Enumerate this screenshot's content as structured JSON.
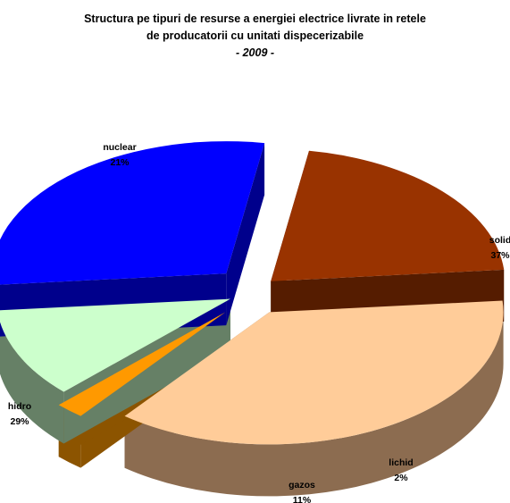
{
  "chart_data": {
    "type": "pie",
    "title_lines": [
      "Structura pe tipuri de resurse a energiei electrice livrate in retele",
      "de producatorii cu unitati dispecerizabile",
      "- 2009  -"
    ],
    "slices": [
      {
        "name": "solid",
        "pct_label": "37%",
        "value": 37,
        "color": "#FFCC99",
        "side": "#8C6C50"
      },
      {
        "name": "lichid",
        "pct_label": "2%",
        "value": 2,
        "color": "#FF9900",
        "side": "#8C5400"
      },
      {
        "name": "gazos",
        "pct_label": "11%",
        "value": 11,
        "color": "#CCFFCC",
        "side": "#668066"
      },
      {
        "name": "hidro",
        "pct_label": "29%",
        "value": 29,
        "color": "#0000FF",
        "side": "#00008C"
      },
      {
        "name": "nuclear",
        "pct_label": "21%",
        "value": 21,
        "color": "#993300",
        "side": "#551C00"
      }
    ]
  }
}
